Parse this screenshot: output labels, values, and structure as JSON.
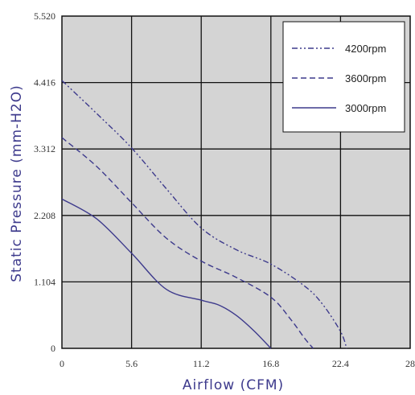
{
  "chart_data": {
    "type": "line",
    "xlabel": "Airflow (CFM)",
    "ylabel": "Static Pressure (mm-H2O)",
    "xlim": [
      0,
      28
    ],
    "ylim": [
      0,
      5.52
    ],
    "x_ticks": [
      "0",
      "5.6",
      "11.2",
      "16.8",
      "22.4",
      "28"
    ],
    "y_ticks": [
      "0",
      "1.104",
      "2.208",
      "3.312",
      "4.416",
      "5.520"
    ],
    "grid": true,
    "legend_position": "top-right",
    "series": [
      {
        "name": "4200rpm",
        "style": "dash-dot-dot",
        "x": [
          0,
          2.8,
          5.6,
          8.4,
          11.2,
          14.0,
          16.8,
          19.6,
          21.0,
          22.4,
          22.9
        ],
        "y": [
          4.45,
          3.9,
          3.33,
          2.65,
          2.0,
          1.64,
          1.4,
          1.02,
          0.72,
          0.28,
          0.0
        ]
      },
      {
        "name": "3600rpm",
        "style": "dashed",
        "x": [
          0,
          2.8,
          5.6,
          8.4,
          11.2,
          14.0,
          16.8,
          18.4,
          19.5,
          20.2
        ],
        "y": [
          3.5,
          3.02,
          2.42,
          1.83,
          1.45,
          1.18,
          0.85,
          0.48,
          0.17,
          0.0
        ]
      },
      {
        "name": "3000rpm",
        "style": "solid",
        "x": [
          0,
          2.8,
          5.6,
          8.4,
          11.2,
          12.6,
          14.0,
          15.4,
          16.8
        ],
        "y": [
          2.48,
          2.15,
          1.58,
          0.98,
          0.8,
          0.72,
          0.55,
          0.3,
          0.0
        ]
      }
    ]
  },
  "colors": {
    "line": "#3d3a8c",
    "plot_bg": "#d4d4d4",
    "grid": "#111111",
    "axis_title": "#3d3a8c"
  }
}
